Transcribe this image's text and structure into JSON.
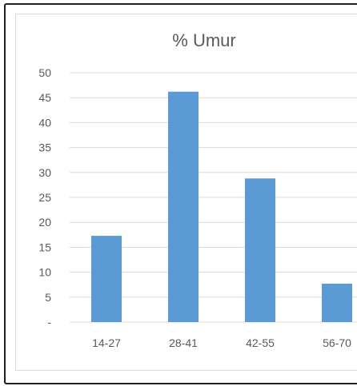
{
  "chart_data": {
    "type": "bar",
    "title": "% Umur",
    "categories": [
      "14-27",
      "28-41",
      "42-55",
      "56-70"
    ],
    "values": [
      17.3,
      46.2,
      28.8,
      7.7
    ],
    "ylim": [
      0,
      50
    ],
    "yticks": [
      "-",
      "5",
      "10",
      "15",
      "20",
      "25",
      "30",
      "35",
      "40",
      "45",
      "50"
    ],
    "grid": true,
    "bar_color": "#5b9bd5",
    "grid_color": "#d9d9d9",
    "text_color": "#595959"
  }
}
